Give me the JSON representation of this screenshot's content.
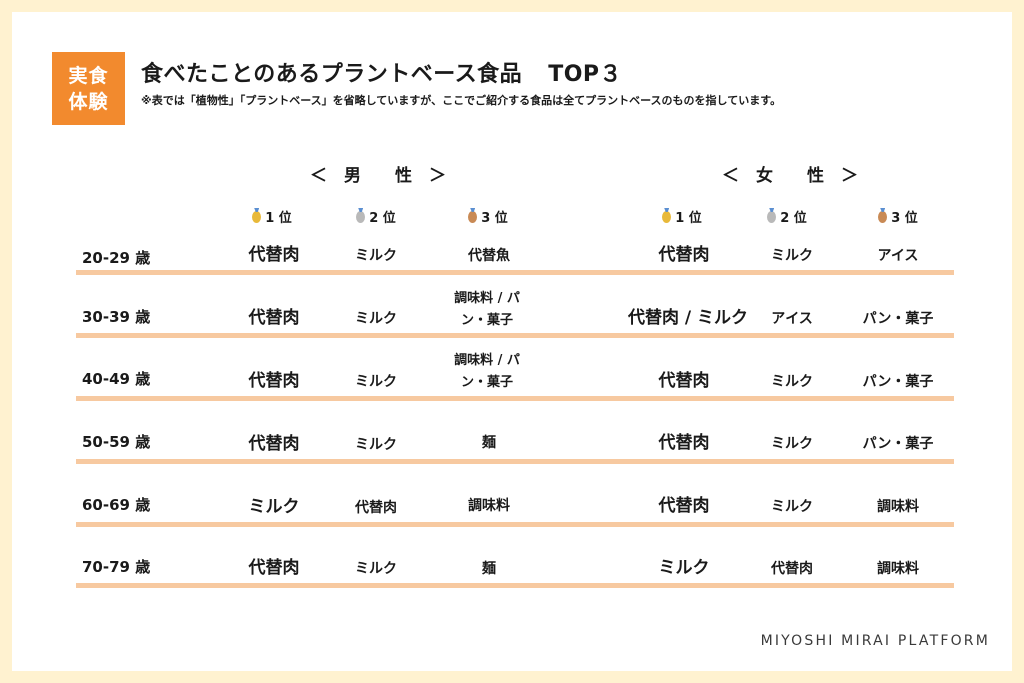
{
  "badge": {
    "line1": "実食",
    "line2": "体験"
  },
  "title": {
    "main": "食べたことのあるプラントベース食品",
    "suffix": "TOP３"
  },
  "note": "※表では「植物性」「プラントベース」を省略していますが、ここでご紹介する食品は全てプラントベースのものを指しています。",
  "headers": {
    "male": "＜　男　　性　＞",
    "female": "＜　女　　性　＞",
    "ranks": [
      "1 位",
      "2 位",
      "3 位"
    ]
  },
  "colors": {
    "accent": "#f28a2e",
    "rule": "#f7c9a0",
    "gold": "#e8b93a",
    "silver": "#b9b9b9",
    "bronze": "#c98a55"
  },
  "rows": [
    {
      "age": "20-29 歳",
      "male": [
        "代替肉",
        "ミルク",
        "代替魚"
      ],
      "female": [
        "代替肉",
        "ミルク",
        "アイス"
      ]
    },
    {
      "age": "30-39 歳",
      "male": [
        "代替肉",
        "ミルク",
        "調味料 / パン・菓子"
      ],
      "female": [
        "代替肉 / ミルク",
        "アイス",
        "パン・菓子"
      ]
    },
    {
      "age": "40-49 歳",
      "male": [
        "代替肉",
        "ミルク",
        "調味料 / パン・菓子"
      ],
      "female": [
        "代替肉",
        "ミルク",
        "パン・菓子"
      ]
    },
    {
      "age": "50-59 歳",
      "male": [
        "代替肉",
        "ミルク",
        "麺"
      ],
      "female": [
        "代替肉",
        "ミルク",
        "パン・菓子"
      ]
    },
    {
      "age": "60-69 歳",
      "male": [
        "ミルク",
        "代替肉",
        "調味料"
      ],
      "female": [
        "代替肉",
        "ミルク",
        "調味料"
      ]
    },
    {
      "age": "70-79 歳",
      "male": [
        "代替肉",
        "ミルク",
        "麺"
      ],
      "female": [
        "ミルク",
        "代替肉",
        "調味料"
      ]
    }
  ],
  "footer": "MIYOSHI MIRAI PLATFORM"
}
